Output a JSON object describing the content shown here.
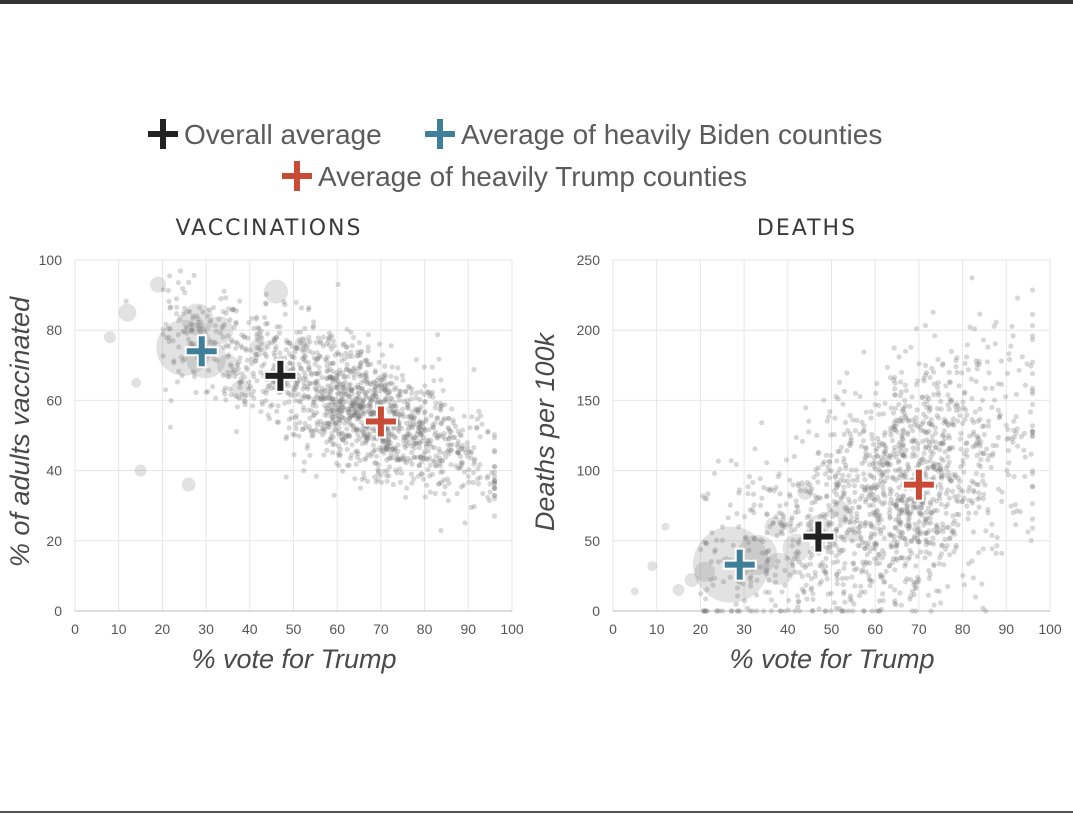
{
  "legend": [
    {
      "label": "Overall average",
      "color": "#222222"
    },
    {
      "label": "Average of heavily Biden counties",
      "color": "#3f7f9a"
    },
    {
      "label": "Average of heavily Trump counties",
      "color": "#c94a35"
    }
  ],
  "colors": {
    "dots": "#7a7a7a",
    "grid": "#e6e6e6",
    "overall": "#222222",
    "biden": "#3f7f9a",
    "trump": "#c94a35"
  },
  "chart_data": [
    {
      "type": "scatter",
      "title": "VACCINATIONS",
      "xlabel": "% vote for Trump",
      "ylabel": "% of adults vaccinated",
      "xlim": [
        0,
        100
      ],
      "ylim": [
        0,
        100
      ],
      "xticks": [
        0,
        10,
        20,
        30,
        40,
        50,
        60,
        70,
        80,
        90,
        100
      ],
      "yticks": [
        0,
        20,
        40,
        60,
        80,
        100
      ],
      "grid": true,
      "point_cloud": {
        "count": 1500,
        "trend_intercept": 92,
        "trend_slope": -0.52,
        "spread": 8.5
      },
      "large_bubbles": [
        {
          "x": 25,
          "y": 75,
          "size": 28
        },
        {
          "x": 30,
          "y": 72,
          "size": 20
        },
        {
          "x": 28,
          "y": 83,
          "size": 16
        },
        {
          "x": 33,
          "y": 80,
          "size": 14
        },
        {
          "x": 46,
          "y": 91,
          "size": 12
        },
        {
          "x": 19,
          "y": 93,
          "size": 8
        },
        {
          "x": 12,
          "y": 85,
          "size": 9
        },
        {
          "x": 8,
          "y": 78,
          "size": 6
        },
        {
          "x": 14,
          "y": 65,
          "size": 5
        },
        {
          "x": 15,
          "y": 40,
          "size": 6
        },
        {
          "x": 26,
          "y": 36,
          "size": 7
        },
        {
          "x": 38,
          "y": 63,
          "size": 10
        },
        {
          "x": 42,
          "y": 75,
          "size": 9
        },
        {
          "x": 52,
          "y": 76,
          "size": 8
        },
        {
          "x": 35,
          "y": 70,
          "size": 11
        },
        {
          "x": 47,
          "y": 68,
          "size": 10
        }
      ],
      "averages": [
        {
          "name": "Overall average",
          "x": 47,
          "y": 67
        },
        {
          "name": "Average of heavily Biden counties",
          "x": 29,
          "y": 74
        },
        {
          "name": "Average of heavily Trump counties",
          "x": 70,
          "y": 54
        }
      ]
    },
    {
      "type": "scatter",
      "title": "DEATHS",
      "xlabel": "% vote for Trump",
      "ylabel": "Deaths per 100k",
      "xlim": [
        0,
        100
      ],
      "ylim": [
        0,
        250
      ],
      "xticks": [
        0,
        10,
        20,
        30,
        40,
        50,
        60,
        70,
        80,
        90,
        100
      ],
      "yticks": [
        0,
        50,
        100,
        150,
        200,
        250
      ],
      "grid": true,
      "point_cloud": {
        "count": 1500,
        "trend_intercept": -5,
        "trend_slope": 1.4,
        "spread": 38
      },
      "large_bubbles": [
        {
          "x": 27,
          "y": 33,
          "size": 38
        },
        {
          "x": 33,
          "y": 40,
          "size": 20
        },
        {
          "x": 38,
          "y": 30,
          "size": 16
        },
        {
          "x": 42,
          "y": 45,
          "size": 14
        },
        {
          "x": 47,
          "y": 60,
          "size": 12
        },
        {
          "x": 37,
          "y": 60,
          "size": 10
        },
        {
          "x": 21,
          "y": 28,
          "size": 10
        },
        {
          "x": 18,
          "y": 22,
          "size": 7
        },
        {
          "x": 15,
          "y": 15,
          "size": 6
        },
        {
          "x": 9,
          "y": 32,
          "size": 5
        },
        {
          "x": 5,
          "y": 14,
          "size": 4
        },
        {
          "x": 12,
          "y": 60,
          "size": 4
        },
        {
          "x": 44,
          "y": 85,
          "size": 8
        },
        {
          "x": 52,
          "y": 72,
          "size": 9
        },
        {
          "x": 55,
          "y": 55,
          "size": 8
        }
      ],
      "averages": [
        {
          "name": "Overall average",
          "x": 47,
          "y": 53
        },
        {
          "name": "Average of heavily Biden counties",
          "x": 29,
          "y": 33
        },
        {
          "name": "Average of heavily Trump counties",
          "x": 70,
          "y": 90
        }
      ]
    }
  ]
}
